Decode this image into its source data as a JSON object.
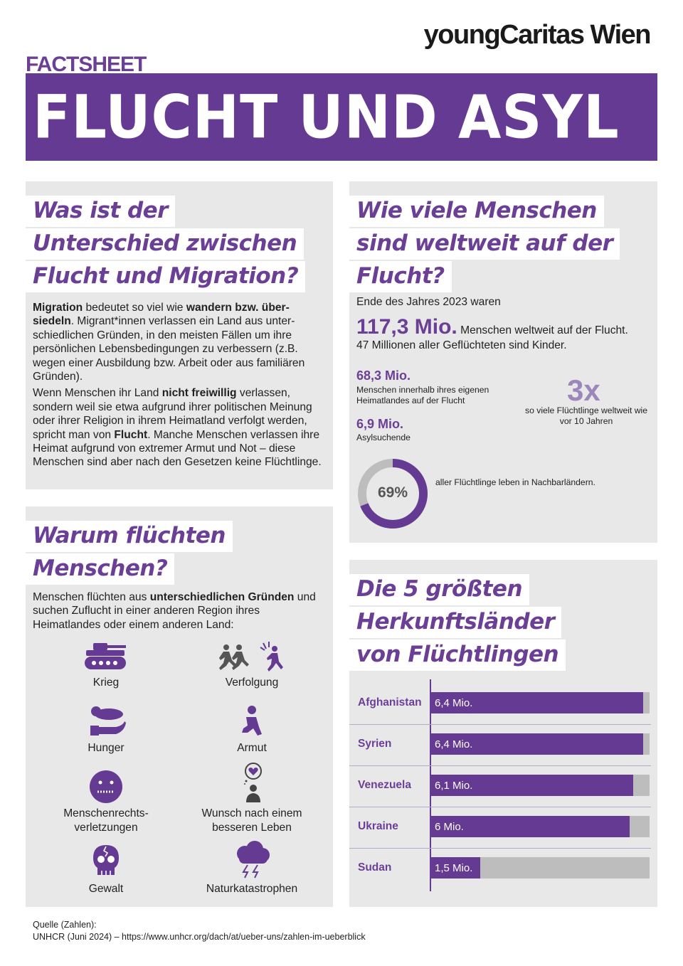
{
  "brand": "youngCaritas Wien",
  "factsheet_label": "FACTSHEET",
  "hero_title": "FLUCHT UND ASYL",
  "section_difference": {
    "heading": [
      "Was ist der",
      "Unterschied zwischen",
      "Flucht und Migration?"
    ],
    "p1": {
      "t1": "Migration",
      "t2": " bedeutet so viel wie ",
      "t3": "wandern bzw. über-siedeln",
      "t4": ". Migrant*innen verlassen ein Land aus unter-schiedlichen Gründen, in den meisten Fällen um ihre persönlichen Lebensbedingungen zu verbessern (z.B. wegen einer Ausbildung bzw. Arbeit oder aus familiären Gründen)."
    },
    "p2": {
      "t1": "Wenn Menschen ihr Land ",
      "t2": "nicht freiwillig",
      "t3": " verlassen, sondern weil sie etwa aufgrund ihrer politischen Meinung oder ihrer Religion in ihrem Heimatland verfolgt werden, spricht man von ",
      "t4": "Flucht",
      "t5": ". Manche Menschen verlassen ihre Heimat aufgrund von extremer Armut und Not – diese Menschen sind aber nach den Gesetzen keine Flüchtlinge."
    }
  },
  "section_reasons": {
    "heading": [
      "Warum flüchten",
      "Menschen?"
    ],
    "intro": {
      "t1": "Menschen flüchten aus ",
      "t2": "unterschiedlichen Gründen",
      "t3": " und suchen Zuflucht in einer anderen Region ihres Heimatlandes oder einem anderen Land:"
    },
    "icons": [
      {
        "label": "Krieg",
        "icon": "tank-icon"
      },
      {
        "label": "Verfolgung",
        "icon": "running-people-icon"
      },
      {
        "label": "Hunger",
        "icon": "hand-bread-icon"
      },
      {
        "label": "Armut",
        "icon": "kneeling-person-icon"
      },
      {
        "label": "Menschenrechts-verletzungen",
        "icon": "zipped-mouth-face-icon"
      },
      {
        "label": "Wunsch nach einem besseren Leben",
        "icon": "person-heart-thought-icon"
      },
      {
        "label": "Gewalt",
        "icon": "cracked-skull-icon"
      },
      {
        "label": "Naturkatastrophen",
        "icon": "storm-cloud-icon"
      }
    ]
  },
  "section_numbers": {
    "heading": [
      "Wie viele Menschen",
      "sind weltweit auf der",
      "Flucht?"
    ],
    "intro": "Ende des Jahres 2023 waren",
    "total_value": "117,3 Mio.",
    "total_text": " Menschen weltweit auf der Flucht.",
    "children": "47 Millionen aller Geflüchteten sind Kinder.",
    "internal_value": "68,3 Mio.",
    "internal_text": "Menschen innerhalb ihres eigenen Heimatlandes auf der Flucht",
    "asylum_value": "6,9 Mio.",
    "asylum_text": "Asylsuchende",
    "multiplier": "3x",
    "multiplier_text": "so viele Flüchtlinge weltweit wie vor 10 Jahren",
    "donut_percent": 69,
    "donut_label": "69%",
    "donut_text": "aller Flüchtlinge leben in Nachbarländern.",
    "colors": {
      "purple": "#653a93",
      "grey": "#bdbdbd"
    }
  },
  "section_countries": {
    "heading": [
      "Die 5 größten",
      "Herkunftsländer",
      "von Flüchtlingen"
    ]
  },
  "chart_data": {
    "type": "bar",
    "orientation": "horizontal",
    "categories": [
      "Afghanistan",
      "Syrien",
      "Venezuela",
      "Ukraine",
      "Sudan"
    ],
    "values": [
      6.4,
      6.4,
      6.1,
      6.0,
      1.5
    ],
    "value_labels": [
      "6,4 Mio.",
      "6,4 Mio.",
      "6,1 Mio.",
      "6 Mio.",
      "1,5 Mio."
    ],
    "xlim": [
      0,
      6.6
    ],
    "title": "",
    "xlabel": "",
    "ylabel": ""
  },
  "source": {
    "line1": "Quelle (Zahlen):",
    "line2": "UNHCR (Juni 2024) – https://www.unhcr.org/dach/at/ueber-uns/zahlen-im-ueberblick"
  }
}
